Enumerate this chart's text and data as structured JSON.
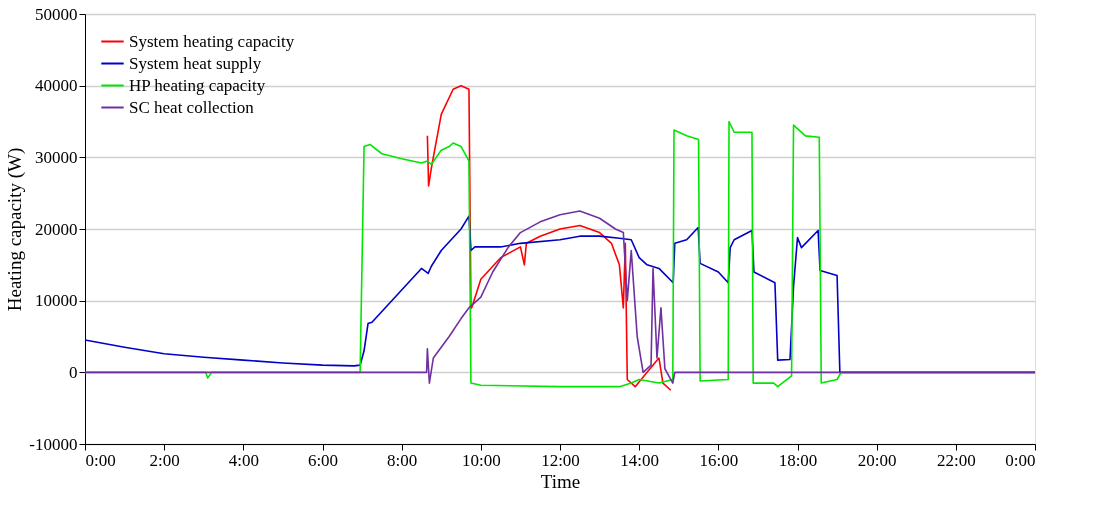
{
  "chart_data": {
    "type": "line",
    "xlabel": "Time",
    "ylabel": "Heating capacity (W)",
    "xlim": [
      0,
      24
    ],
    "ylim": [
      -10000,
      50000
    ],
    "xticks": [
      {
        "value": 0,
        "label": "0:00"
      },
      {
        "value": 2,
        "label": "2:00"
      },
      {
        "value": 4,
        "label": "4:00"
      },
      {
        "value": 6,
        "label": "6:00"
      },
      {
        "value": 8,
        "label": "8:00"
      },
      {
        "value": 10,
        "label": "10:00"
      },
      {
        "value": 12,
        "label": "12:00"
      },
      {
        "value": 14,
        "label": "14:00"
      },
      {
        "value": 16,
        "label": "16:00"
      },
      {
        "value": 18,
        "label": "18:00"
      },
      {
        "value": 20,
        "label": "20:00"
      },
      {
        "value": 22,
        "label": "22:00"
      },
      {
        "value": 24,
        "label": "0:00"
      }
    ],
    "yticks": [
      -10000,
      0,
      10000,
      20000,
      30000,
      40000,
      50000
    ],
    "grid": "y",
    "legend": "top left",
    "line_style": "solid",
    "marker": "none",
    "series": [
      {
        "name": "System heating capacity",
        "color": "#ff0000",
        "x": [
          8.65,
          8.68,
          8.75,
          9.0,
          9.3,
          9.5,
          9.7,
          9.75,
          9.77,
          10,
          10.5,
          11,
          11.1,
          11.15,
          11.5,
          12,
          12.5,
          13,
          13.3,
          13.5,
          13.6,
          13.65,
          13.7,
          13.9,
          14.2,
          14.5,
          14.6,
          14.8
        ],
        "values": [
          33000,
          26000,
          28500,
          36000,
          39500,
          40000,
          39500,
          9000,
          9000,
          13000,
          16000,
          17500,
          15000,
          18000,
          19000,
          20000,
          20500,
          19500,
          18000,
          15000,
          9000,
          18000,
          -1000,
          -2000,
          0,
          2000,
          -1500,
          -2500
        ]
      },
      {
        "name": "System heat supply",
        "color": "#0000c8",
        "x": [
          0,
          1,
          2,
          3,
          4,
          5,
          6,
          6.8,
          6.95,
          7.05,
          7.15,
          7.25,
          8,
          8.5,
          8.67,
          8.75,
          9.0,
          9.5,
          9.7,
          9.75,
          9.85,
          10.5,
          11,
          12,
          12.5,
          13,
          13.5,
          13.8,
          14,
          14.2,
          14.5,
          14.86,
          14.9,
          15.2,
          15.49,
          15.54,
          16.0,
          16.25,
          16.3,
          16.4,
          16.85,
          16.9,
          17.43,
          17.5,
          17.81,
          17.9,
          18.0,
          18.1,
          18.52,
          18.57,
          19.0,
          19.07,
          24
        ],
        "values": [
          4500,
          3500,
          2600,
          2100,
          1700,
          1300,
          1000,
          900,
          1000,
          3000,
          6800,
          7000,
          11500,
          14500,
          13800,
          14800,
          17000,
          20000,
          21800,
          17000,
          17500,
          17500,
          18000,
          18500,
          19000,
          19000,
          18700,
          18500,
          16000,
          15000,
          14500,
          12500,
          18000,
          18500,
          20200,
          15200,
          14000,
          12500,
          17400,
          18500,
          19800,
          14000,
          12500,
          1700,
          1800,
          12000,
          18800,
          17400,
          19800,
          14200,
          13500,
          0,
          0
        ]
      },
      {
        "name": "HP heating capacity",
        "color": "#00e600",
        "x": [
          0,
          3.05,
          3.1,
          3.2,
          6.95,
          7.05,
          7.2,
          7.5,
          8,
          8.5,
          8.65,
          8.75,
          9.0,
          9.2,
          9.3,
          9.5,
          9.7,
          9.75,
          10,
          12,
          13.5,
          13.8,
          14.0,
          14.5,
          14.85,
          14.88,
          15.2,
          15.5,
          15.54,
          16.25,
          16.27,
          16.4,
          16.85,
          16.88,
          17.4,
          17.5,
          17.85,
          17.9,
          18.2,
          18.55,
          18.6,
          19.0,
          19.1,
          24
        ],
        "values": [
          0,
          0,
          -800,
          0,
          0,
          31500,
          31800,
          30500,
          29800,
          29200,
          29500,
          29000,
          31000,
          31500,
          32000,
          31500,
          29500,
          -1500,
          -1800,
          -2000,
          -2000,
          -1500,
          -1000,
          -1500,
          -1000,
          33800,
          33000,
          32500,
          -1200,
          -1000,
          35000,
          33500,
          33500,
          -1500,
          -1500,
          -2000,
          -500,
          34500,
          33000,
          32800,
          -1500,
          -1000,
          0,
          0
        ]
      },
      {
        "name": "SC heat collection",
        "color": "#7030a0",
        "x": [
          0,
          8.63,
          8.65,
          8.7,
          8.8,
          9.2,
          9.5,
          9.7,
          10,
          10.3,
          10.7,
          11.0,
          11.5,
          12,
          12.5,
          13,
          13.4,
          13.6,
          13.7,
          13.8,
          13.95,
          14.1,
          14.3,
          14.35,
          14.45,
          14.55,
          14.65,
          14.85,
          14.9,
          24
        ],
        "values": [
          0,
          0,
          3300,
          -1500,
          2000,
          5000,
          7500,
          9000,
          10500,
          14000,
          17500,
          19500,
          21000,
          22000,
          22500,
          21500,
          20000,
          19500,
          10000,
          17000,
          5000,
          0,
          1000,
          14500,
          2000,
          9000,
          500,
          -1500,
          0,
          0
        ]
      }
    ]
  }
}
